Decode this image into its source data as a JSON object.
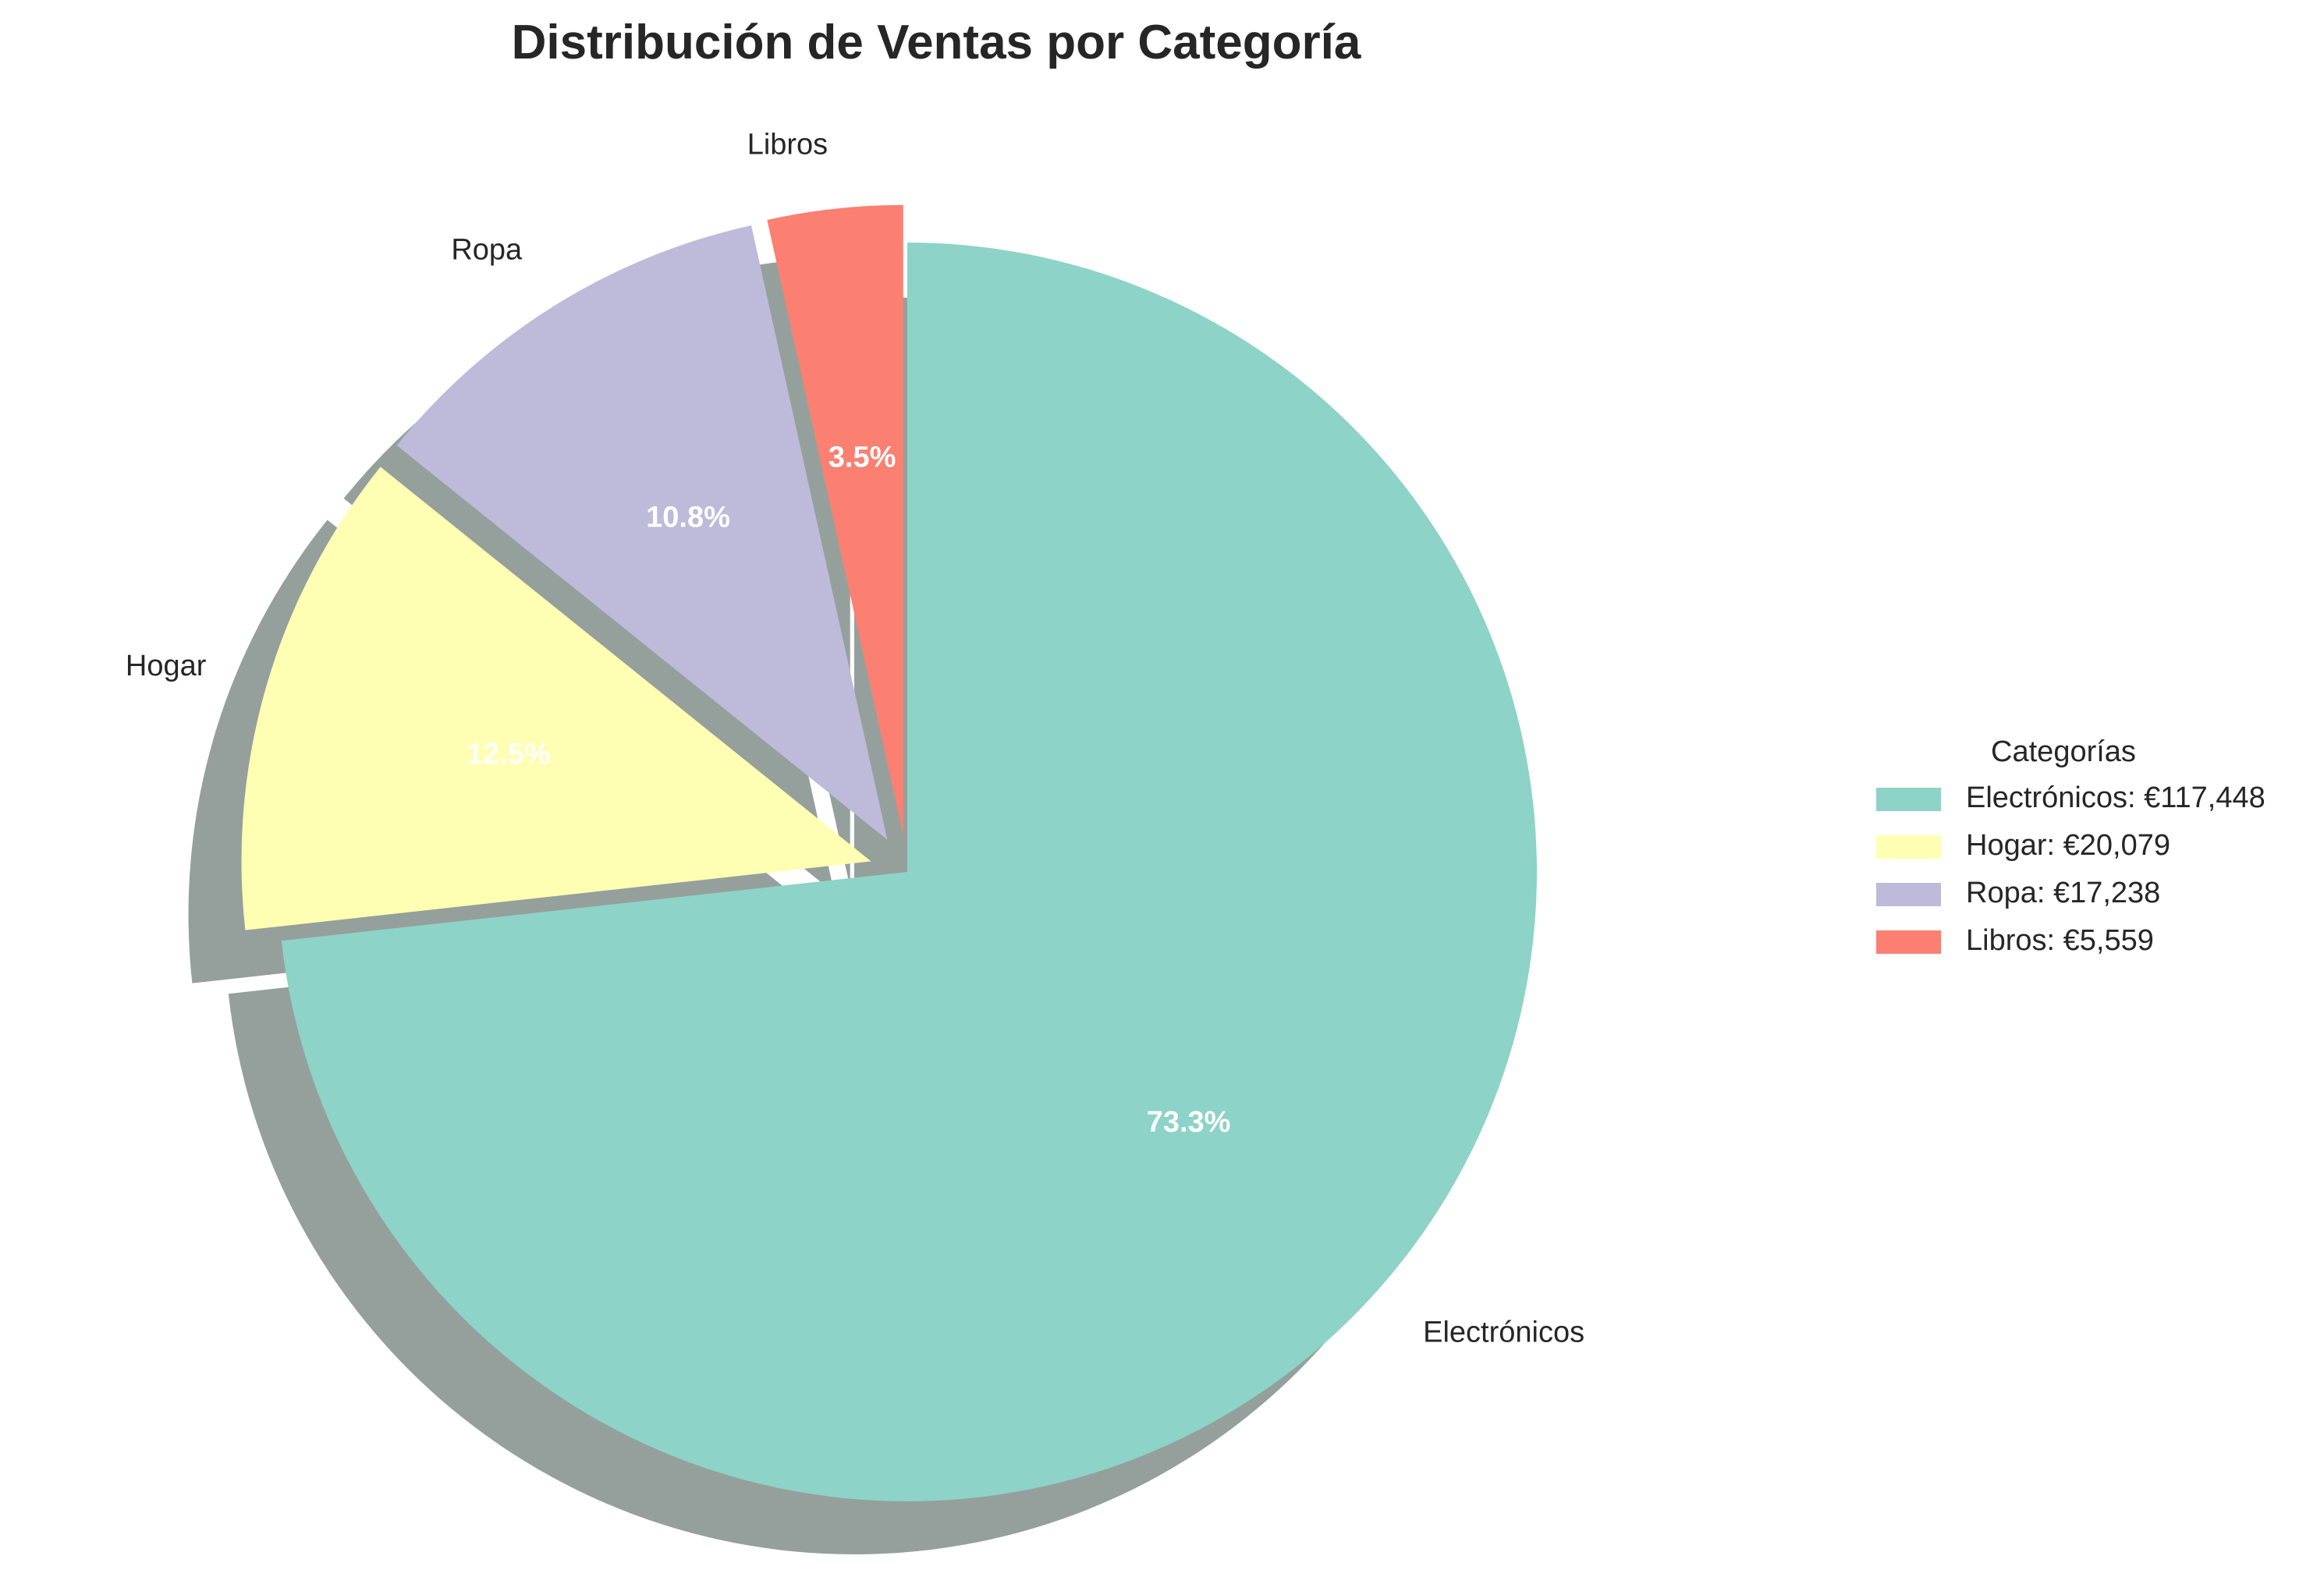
{
  "chart_data": {
    "type": "pie",
    "title": "Distribución de Ventas por Categoría",
    "legend": {
      "title": "Categorías",
      "placement": "right"
    },
    "start_angle_deg": 90,
    "direction": "clockwise",
    "shadow": true,
    "slices": [
      {
        "label": "Electrónicos",
        "value": 117448,
        "value_text": "€117,448",
        "legend_text": "Electrónicos: €117,448",
        "percent_text": "73.3%",
        "color": "#8dd3c7",
        "exploded": false
      },
      {
        "label": "Hogar",
        "value": 20079,
        "value_text": "€20,079",
        "legend_text": "Hogar: €20,079",
        "percent_text": "12.5%",
        "color": "#ffffb3",
        "exploded": true
      },
      {
        "label": "Ropa",
        "value": 17238,
        "value_text": "€17,238",
        "legend_text": "Ropa: €17,238",
        "percent_text": "10.8%",
        "color": "#bebada",
        "exploded": true
      },
      {
        "label": "Libros",
        "value": 5559,
        "value_text": "€5,559",
        "legend_text": "Libros: €5,559",
        "percent_text": "3.5%",
        "color": "#fb8072",
        "exploded": true
      }
    ],
    "shadow_color": "#95a09c",
    "pct_label_color": "#ffffff",
    "text_color": "#262626"
  }
}
